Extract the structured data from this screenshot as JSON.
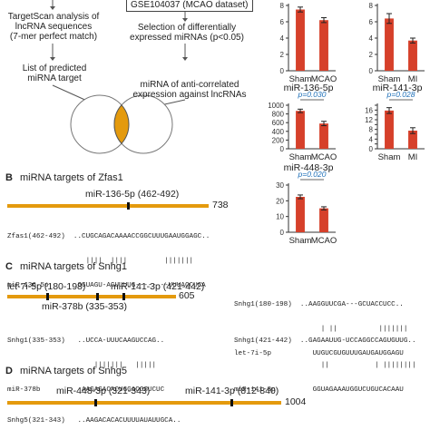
{
  "colors": {
    "orange": "#e49a0d",
    "bar_red": "#d6402a",
    "pval": "#1d6fb8"
  },
  "panel_a": {
    "dataset_box": "GSE104037 (MCAO dataset)",
    "targetscan": [
      "TargetScan analysis of",
      "lncRNA sequences",
      "(7-mer perfect match)"
    ],
    "selection": [
      "Selection of differentially",
      "expressed miRNAs (p<0.05)"
    ],
    "predicted": [
      "List of predicted",
      "miRNA target"
    ],
    "anticorrelated": [
      "miRNA of anti-correlated",
      "expression against lncRNAs"
    ]
  },
  "chart_data": [
    {
      "type": "bar",
      "title": "",
      "categories": [
        "Sham",
        "MCAO"
      ],
      "values": [
        7.5,
        6.2
      ],
      "errors": [
        0.3,
        0.3
      ],
      "ylim": [
        0,
        8
      ],
      "yticks": [
        0,
        2,
        4,
        6,
        8
      ],
      "pvalue": ""
    },
    {
      "type": "bar",
      "title": "",
      "categories": [
        "Sham",
        "MI"
      ],
      "values": [
        6.4,
        3.7
      ],
      "errors": [
        0.6,
        0.3
      ],
      "ylim": [
        0,
        8
      ],
      "yticks": [
        0,
        2,
        4,
        6,
        8
      ],
      "pvalue": ""
    },
    {
      "type": "bar",
      "title": "miR-136-5p",
      "categories": [
        "Sham",
        "MCAO"
      ],
      "values": [
        870,
        580
      ],
      "errors": [
        40,
        50
      ],
      "ylim": [
        0,
        1000
      ],
      "yticks": [
        0,
        200,
        400,
        600,
        800,
        1000
      ],
      "pvalue": "p=0.030"
    },
    {
      "type": "bar",
      "title": "miR-141-3p",
      "categories": [
        "Sham",
        "MI"
      ],
      "values": [
        15.8,
        7.5
      ],
      "errors": [
        1.2,
        1.2
      ],
      "ylim": [
        0,
        18
      ],
      "yticks": [
        0,
        2,
        4,
        6,
        8,
        10,
        12,
        14,
        16,
        18
      ],
      "pvalue": "p=0.028"
    },
    {
      "type": "bar",
      "title": "miR-448-3p",
      "categories": [
        "Sham",
        "MCAO"
      ],
      "values": [
        22.5,
        15.2
      ],
      "errors": [
        1.2,
        1.0
      ],
      "ylim": [
        0,
        30
      ],
      "yticks": [
        0,
        10,
        20,
        30
      ],
      "pvalue": "p=0.020"
    }
  ],
  "panel_b": {
    "letter": "B",
    "title": "miRNA targets of Zfas1",
    "site": "miR-136-5p (462-492)",
    "length": "738",
    "align": [
      "Zfas1(462-492)  ..CUGCAGACAAAACCGGCUUUGAAUGGAGC..",
      "                   ||||  ||||         |||||||",
      "miR-136-5p       GGUAGU-AGUUUUG--------UUUACCUCA"
    ]
  },
  "panel_c": {
    "letter": "C",
    "title": "miRNA targets of Snhg1",
    "site1": "let-7i-5p (180-198)",
    "site2": "miR-141-3p (421-442)",
    "site3": "miR-378b (335-353)",
    "length": "605",
    "align_let7": [
      "Snhg1(180-198)  ..AAGGUUCGA---GCUACCUCC..",
      "                     | ||          |||||||",
      "let-7i-5p          UUGUCGUGUUUGAUGAUGGAGU"
    ],
    "align_378": [
      "Snhg1(335-353)   ..UCCA-UUUCAAGUCCAG..",
      "                     |||||||   |||||",
      "miR-378b          AAGAGACACUGGACGGUCUC"
    ],
    "align_141": [
      "Snhg1(421-442)  ..GAGAAUUG-UCCAGGCCAGUGUUG..",
      "                     ||           | ||||||||",
      "miR-141-3p         GGUAGAAAUGGUCUGUCACAAU"
    ]
  },
  "panel_d": {
    "letter": "D",
    "title": "miRNA targets of Snhg5",
    "site1": "miR-448-3p (321-343)",
    "site2": "miR-141-3p (812-840)",
    "length": "1004",
    "align": "Snhg5(321-343)   ..AAGACACACUUUUAUAUUGCA.."
  }
}
